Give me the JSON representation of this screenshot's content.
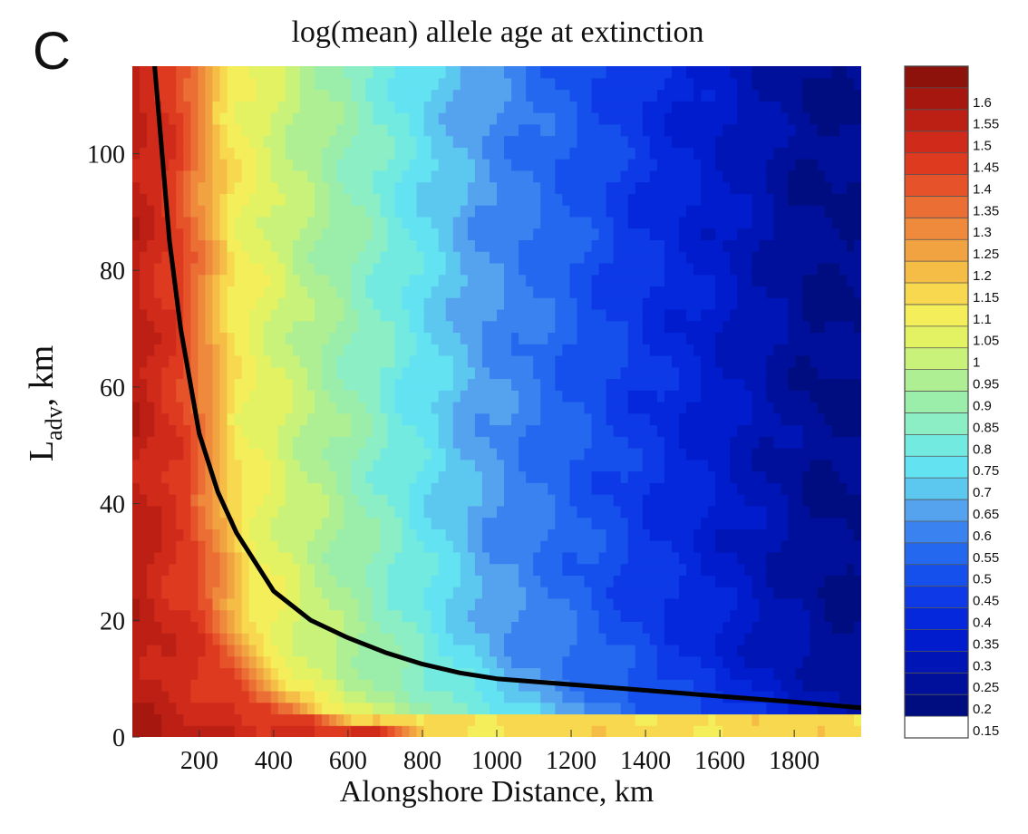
{
  "panel_label": "C",
  "chart_data": {
    "type": "heatmap",
    "title": "log(mean) allele age at extinction",
    "xlabel": "Alongshore Distance, km",
    "ylabel_main": "L",
    "ylabel_sub": "adv",
    "ylabel_suffix": ", km",
    "xlim": [
      20,
      1980
    ],
    "ylim": [
      0,
      115
    ],
    "x_ticks": [
      200,
      400,
      600,
      800,
      1000,
      1200,
      1400,
      1600,
      1800
    ],
    "x_tick_labels": [
      "200",
      "400",
      "600",
      "800",
      "1000",
      "1200",
      "1400",
      "1600",
      "1800"
    ],
    "y_ticks": [
      0,
      20,
      40,
      60,
      80,
      100
    ],
    "y_tick_labels": [
      "0",
      "20",
      "40",
      "60",
      "80",
      "100"
    ],
    "colorbar": {
      "levels": [
        0.15,
        0.2,
        0.25,
        0.3,
        0.35,
        0.4,
        0.45,
        0.5,
        0.55,
        0.6,
        0.65,
        0.7,
        0.75,
        0.8,
        0.85,
        0.9,
        0.95,
        1,
        1.05,
        1.1,
        1.15,
        1.2,
        1.25,
        1.3,
        1.35,
        1.4,
        1.45,
        1.5,
        1.55,
        1.6
      ],
      "labels": [
        "0.15",
        "0.2",
        "0.25",
        "0.3",
        "0.35",
        "0.4",
        "0.45",
        "0.5",
        "0.55",
        "0.6",
        "0.65",
        "0.7",
        "0.75",
        "0.8",
        "0.85",
        "0.9",
        "0.95",
        "1",
        "1.05",
        "1.1",
        "1.15",
        "1.2",
        "1.25",
        "1.3",
        "1.35",
        "1.4",
        "1.45",
        "1.5",
        "1.55",
        "1.6"
      ],
      "colors": [
        "#ffffff",
        "#000d80",
        "#00109a",
        "#0015b5",
        "#001ccc",
        "#0528dd",
        "#0d3ae6",
        "#1650ec",
        "#2468ef",
        "#3a82ef",
        "#55a3ee",
        "#5cc8f0",
        "#63e2f2",
        "#73eae0",
        "#8beec4",
        "#9bedaa",
        "#aeef94",
        "#c8f27a",
        "#e2f263",
        "#f4ee5a",
        "#f8d84e",
        "#f5bd46",
        "#f2a341",
        "#ef8a3c",
        "#eb6e34",
        "#e65229",
        "#dd3a20",
        "#cf2a1a",
        "#bc1f14",
        "#a5170f",
        "#8d120c"
      ]
    },
    "threshold_curve": {
      "x": [
        80,
        100,
        120,
        150,
        200,
        250,
        300,
        400,
        500,
        600,
        700,
        800,
        900,
        1000,
        1200,
        1400,
        1600,
        1800,
        1980
      ],
      "y": [
        115,
        100,
        85,
        70,
        52,
        42,
        35,
        25,
        20,
        17,
        14.5,
        12.5,
        11,
        10,
        9,
        8,
        7,
        6,
        5
      ]
    },
    "field_model": {
      "boundary_base": 120,
      "boundary_num": 2000,
      "boundary_offset": 2.5,
      "edge_value": 1.55,
      "peak_value": 1.42,
      "yellow_value": 1.08,
      "green_value": 0.9,
      "cyan_value": 0.62,
      "far_value": 0.2
    }
  }
}
